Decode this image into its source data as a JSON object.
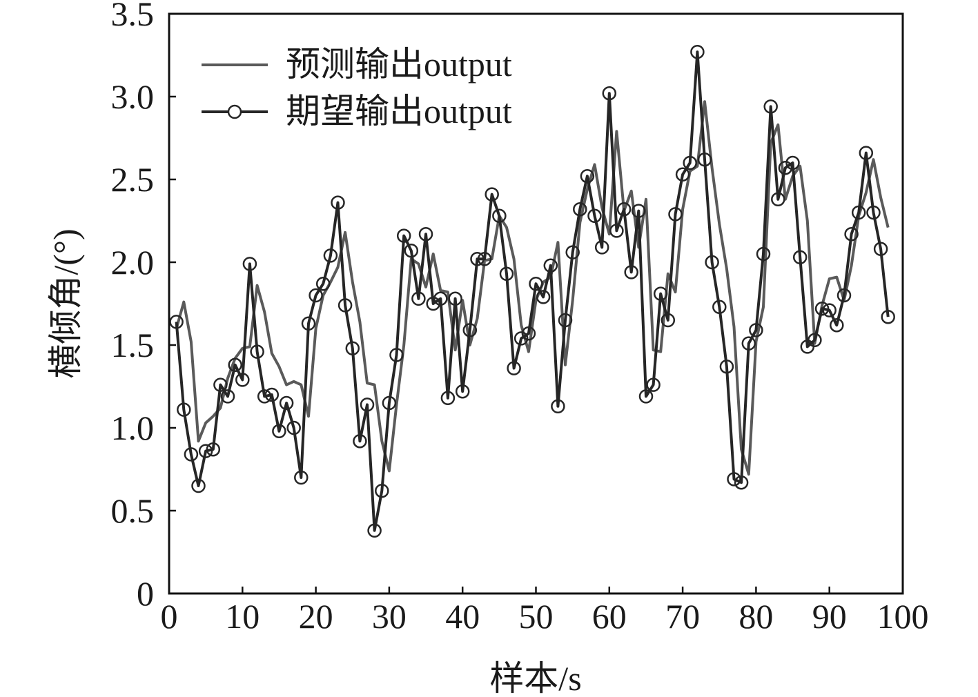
{
  "chart_data": {
    "type": "line",
    "title": "",
    "xlabel": "样本/s",
    "ylabel": "横倾角/(°)",
    "xlim": [
      0,
      100
    ],
    "ylim": [
      0,
      3.5
    ],
    "xticks": [
      0,
      10,
      20,
      30,
      40,
      50,
      60,
      70,
      80,
      90,
      100
    ],
    "yticks": [
      0,
      0.5,
      1.0,
      1.5,
      2.0,
      2.5,
      3.0,
      3.5
    ],
    "xtick_labels": [
      "0",
      "10",
      "20",
      "30",
      "40",
      "50",
      "60",
      "70",
      "80",
      "90",
      "100"
    ],
    "ytick_labels": [
      "0",
      "0.5",
      "1.0",
      "1.5",
      "2.0",
      "2.5",
      "3.0",
      "3.5"
    ],
    "grid": false,
    "legend_position": "top-left",
    "series": [
      {
        "name": "预测输出output",
        "color": "#5a5a5a",
        "marker": "none",
        "x": [
          1,
          2,
          3,
          4,
          5,
          6,
          7,
          8,
          9,
          10,
          11,
          12,
          13,
          14,
          15,
          16,
          17,
          18,
          19,
          20,
          21,
          22,
          23,
          24,
          25,
          26,
          27,
          28,
          29,
          30,
          31,
          32,
          33,
          34,
          35,
          36,
          37,
          38,
          39,
          40,
          41,
          42,
          43,
          44,
          45,
          46,
          47,
          48,
          49,
          50,
          51,
          52,
          53,
          54,
          55,
          56,
          57,
          58,
          59,
          60,
          61,
          62,
          63,
          64,
          65,
          66,
          67,
          68,
          69,
          70,
          71,
          72,
          73,
          74,
          75,
          76,
          77,
          78,
          79,
          80,
          81,
          82,
          83,
          84,
          85,
          86,
          87,
          88,
          89,
          90,
          91,
          92,
          93,
          94,
          95,
          96,
          97,
          98
        ],
        "y": [
          1.6,
          1.76,
          1.52,
          0.92,
          1.03,
          1.07,
          1.12,
          1.3,
          1.42,
          1.48,
          1.49,
          1.86,
          1.7,
          1.45,
          1.37,
          1.26,
          1.28,
          1.26,
          1.07,
          1.6,
          1.8,
          1.88,
          1.97,
          2.18,
          1.88,
          1.64,
          1.27,
          1.26,
          0.92,
          0.74,
          1.14,
          1.5,
          2.02,
          1.99,
          1.85,
          2.05,
          1.83,
          1.82,
          1.47,
          1.77,
          1.5,
          1.66,
          2.01,
          2.02,
          2.28,
          2.21,
          2.02,
          1.62,
          1.46,
          1.77,
          1.88,
          1.91,
          2.12,
          1.38,
          1.77,
          2.24,
          2.44,
          2.59,
          2.33,
          2.17,
          2.79,
          2.31,
          2.43,
          2.09,
          2.38,
          1.47,
          1.46,
          1.93,
          1.82,
          2.32,
          2.55,
          2.58,
          2.97,
          2.57,
          2.23,
          1.96,
          1.61,
          0.87,
          0.72,
          1.52,
          1.73,
          2.72,
          2.83,
          2.38,
          2.52,
          2.58,
          2.25,
          1.51,
          1.74,
          1.9,
          1.91,
          1.77,
          1.98,
          2.28,
          2.42,
          2.62,
          2.39,
          2.21
        ]
      },
      {
        "name": "期望输出output",
        "color": "#262626",
        "marker": "circle",
        "x": [
          1,
          2,
          3,
          4,
          5,
          6,
          7,
          8,
          9,
          10,
          11,
          12,
          13,
          14,
          15,
          16,
          17,
          18,
          19,
          20,
          21,
          22,
          23,
          24,
          25,
          26,
          27,
          28,
          29,
          30,
          31,
          32,
          33,
          34,
          35,
          36,
          37,
          38,
          39,
          40,
          41,
          42,
          43,
          44,
          45,
          46,
          47,
          48,
          49,
          50,
          51,
          52,
          53,
          54,
          55,
          56,
          57,
          58,
          59,
          60,
          61,
          62,
          63,
          64,
          65,
          66,
          67,
          68,
          69,
          70,
          71,
          72,
          73,
          74,
          75,
          76,
          77,
          78,
          79,
          80,
          81,
          82,
          83,
          84,
          85,
          86,
          87,
          88,
          89,
          90,
          91,
          92,
          93,
          94,
          95,
          96,
          97,
          98
        ],
        "y": [
          1.64,
          1.11,
          0.84,
          0.65,
          0.86,
          0.87,
          1.26,
          1.19,
          1.38,
          1.29,
          1.99,
          1.46,
          1.19,
          1.2,
          0.98,
          1.15,
          1.0,
          0.7,
          1.63,
          1.8,
          1.87,
          2.04,
          2.36,
          1.74,
          1.48,
          0.92,
          1.14,
          0.38,
          0.62,
          1.15,
          1.44,
          2.16,
          2.07,
          1.78,
          2.17,
          1.75,
          1.78,
          1.18,
          1.78,
          1.22,
          1.59,
          2.02,
          2.02,
          2.41,
          2.28,
          1.93,
          1.36,
          1.54,
          1.57,
          1.87,
          1.79,
          1.98,
          1.13,
          1.65,
          2.06,
          2.32,
          2.52,
          2.28,
          2.09,
          3.02,
          2.19,
          2.32,
          1.94,
          2.31,
          1.19,
          1.26,
          1.81,
          1.65,
          2.29,
          2.53,
          2.6,
          3.27,
          2.62,
          2.0,
          1.73,
          1.37,
          0.69,
          0.67,
          1.51,
          1.59,
          2.05,
          2.94,
          2.38,
          2.57,
          2.6,
          2.03,
          1.49,
          1.53,
          1.72,
          1.71,
          1.62,
          1.8,
          2.17,
          2.3,
          2.66,
          2.3,
          2.08,
          1.67
        ]
      }
    ]
  }
}
